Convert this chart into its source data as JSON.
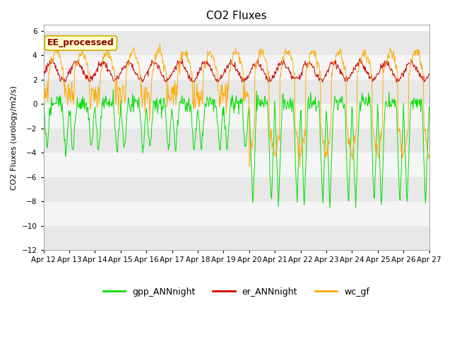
{
  "title": "CO2 Fluxes",
  "ylabel": "CO2 Fluxes (urology/m2/s)",
  "ylim": [
    -12,
    6.5
  ],
  "yticks": [
    -12,
    -10,
    -8,
    -6,
    -4,
    -2,
    0,
    2,
    4,
    6
  ],
  "xlabel_ticks": [
    "Apr 12",
    "Apr 13",
    "Apr 14",
    "Apr 15",
    "Apr 16",
    "Apr 17",
    "Apr 18",
    "Apr 19",
    "Apr 20",
    "Apr 21",
    "Apr 22",
    "Apr 23",
    "Apr 24",
    "Apr 25",
    "Apr 26",
    "Apr 27"
  ],
  "n_days": 15,
  "bg_color": "#ffffff",
  "plot_bg": "#ffffff",
  "band_colors": [
    "#e8e8e8",
    "#f5f5f5"
  ],
  "legend_entries": [
    "gpp_ANNnight",
    "er_ANNnight",
    "wc_gf"
  ],
  "legend_colors": [
    "#00dd00",
    "#cc0000",
    "#ffaa00"
  ],
  "line_colors": {
    "gpp": "#00dd00",
    "er": "#cc0000",
    "wc": "#ffaa00"
  },
  "annotation_text": "EE_processed",
  "annotation_color": "#8b0000",
  "annotation_bg": "#ffffcc",
  "annotation_border": "#ccaa00",
  "title_fontsize": 11,
  "axis_fontsize": 8,
  "tick_fontsize": 7.5,
  "legend_fontsize": 9
}
